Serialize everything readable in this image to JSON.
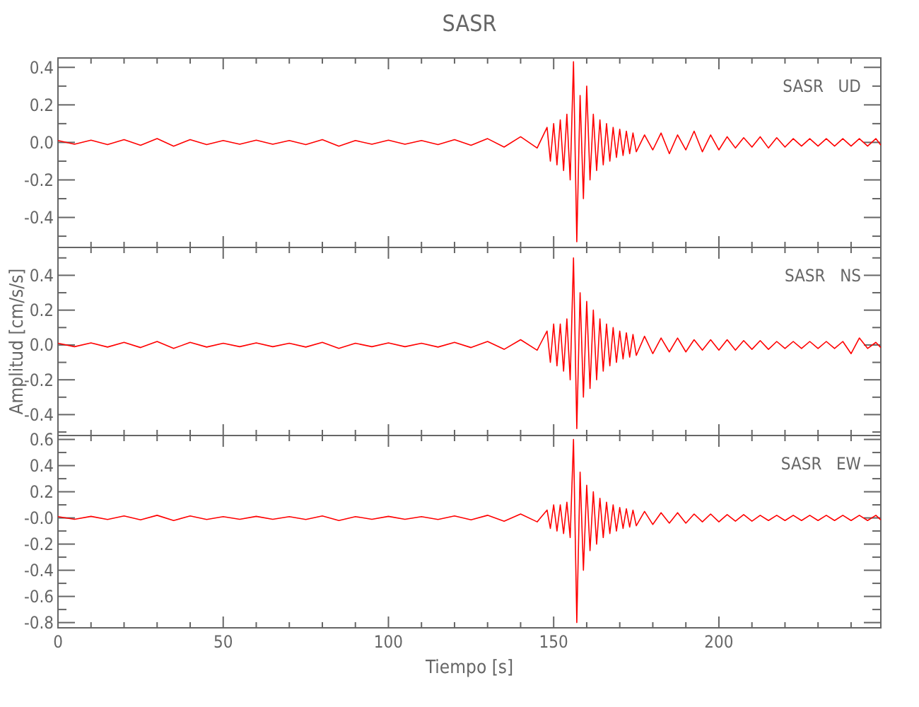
{
  "chart_data": [
    {
      "type": "line",
      "title": "SASR",
      "annotations": [
        "SASR   UD"
      ],
      "tick_labels": "y",
      "xlim": [
        0,
        249
      ],
      "ylim": [
        -0.56,
        0.45
      ],
      "xticks": [
        0,
        {
          "value": 10,
          "label": null
        },
        {
          "value": 20,
          "label": null
        },
        {
          "value": 30,
          "label": null
        },
        {
          "value": 40,
          "label": null
        },
        50,
        {
          "value": 60,
          "label": null
        },
        {
          "value": 70,
          "label": null
        },
        {
          "value": 80,
          "label": null
        },
        {
          "value": 90,
          "label": null
        },
        100,
        {
          "value": 110,
          "label": null
        },
        {
          "value": 120,
          "label": null
        },
        {
          "value": 130,
          "label": null
        },
        {
          "value": 140,
          "label": null
        },
        150,
        {
          "value": 160,
          "label": null
        },
        {
          "value": 170,
          "label": null
        },
        {
          "value": 180,
          "label": null
        },
        {
          "value": 190,
          "label": null
        },
        200,
        {
          "value": 210,
          "label": null
        },
        {
          "value": 220,
          "label": null
        },
        {
          "value": 230,
          "label": null
        },
        {
          "value": 240,
          "label": null
        }
      ],
      "yticks": [
        {
          "value": -0.5,
          "label": null
        },
        -0.4,
        {
          "value": -0.3,
          "label": null
        },
        -0.2,
        {
          "value": -0.1,
          "label": null
        },
        {
          "value": 0,
          "label": "0.0"
        },
        {
          "value": 0.1,
          "label": null
        },
        0.2,
        {
          "value": 0.3,
          "label": null
        },
        0.4
      ],
      "x": [
        0,
        5,
        10,
        15,
        20,
        25,
        30,
        35,
        40,
        45,
        50,
        55,
        60,
        65,
        70,
        75,
        80,
        85,
        90,
        95,
        100,
        105,
        110,
        115,
        120,
        125,
        130,
        135,
        140,
        145,
        148,
        149,
        150,
        151,
        152,
        153,
        154,
        155,
        156,
        157,
        158,
        159,
        160,
        161,
        162,
        163,
        164,
        165,
        166,
        167,
        168,
        169,
        170,
        171,
        172,
        173,
        174,
        175,
        177.5,
        180,
        182.5,
        185,
        187.5,
        190,
        192.5,
        195,
        197.5,
        200,
        202.5,
        205,
        207.5,
        210,
        212.5,
        215,
        217.5,
        220,
        222.5,
        225,
        227.5,
        230,
        232.5,
        235,
        237.5,
        240,
        242.5,
        245,
        247.5,
        249
      ],
      "series": [
        {
          "color": "#ff0000",
          "values": [
            0.01,
            -0.01,
            0.012,
            -0.012,
            0.015,
            -0.015,
            0.02,
            -0.02,
            0.015,
            -0.012,
            0.01,
            -0.01,
            0.012,
            -0.01,
            0.01,
            -0.012,
            0.015,
            -0.02,
            0.01,
            -0.01,
            0.012,
            -0.01,
            0.01,
            -0.012,
            0.015,
            -0.015,
            0.02,
            -0.025,
            0.03,
            -0.03,
            0.08,
            -0.1,
            0.1,
            -0.12,
            0.12,
            -0.15,
            0.15,
            -0.2,
            0.43,
            -0.53,
            0.25,
            -0.3,
            0.3,
            -0.2,
            0.15,
            -0.15,
            0.12,
            -0.12,
            0.1,
            -0.1,
            0.08,
            -0.08,
            0.07,
            -0.07,
            0.06,
            -0.06,
            0.05,
            -0.05,
            0.04,
            -0.04,
            0.05,
            -0.06,
            0.04,
            -0.04,
            0.06,
            -0.05,
            0.04,
            -0.04,
            0.03,
            -0.03,
            0.025,
            -0.025,
            0.03,
            -0.03,
            0.025,
            -0.025,
            0.02,
            -0.02,
            0.02,
            -0.02,
            0.02,
            -0.02,
            0.02,
            -0.02,
            0.02,
            -0.02,
            0.02,
            -0.015
          ]
        }
      ]
    },
    {
      "type": "line",
      "ylabel": "Amplitud [cm/s/s]",
      "annotations": [
        "SASR   NS"
      ],
      "tick_labels": "y",
      "xlim": [
        0,
        249
      ],
      "ylim": [
        -0.52,
        0.56
      ],
      "xticks": [
        0,
        {
          "value": 10,
          "label": null
        },
        {
          "value": 20,
          "label": null
        },
        {
          "value": 30,
          "label": null
        },
        {
          "value": 40,
          "label": null
        },
        50,
        {
          "value": 60,
          "label": null
        },
        {
          "value": 70,
          "label": null
        },
        {
          "value": 80,
          "label": null
        },
        {
          "value": 90,
          "label": null
        },
        100,
        {
          "value": 110,
          "label": null
        },
        {
          "value": 120,
          "label": null
        },
        {
          "value": 130,
          "label": null
        },
        {
          "value": 140,
          "label": null
        },
        150,
        {
          "value": 160,
          "label": null
        },
        {
          "value": 170,
          "label": null
        },
        {
          "value": 180,
          "label": null
        },
        {
          "value": 190,
          "label": null
        },
        200,
        {
          "value": 210,
          "label": null
        },
        {
          "value": 220,
          "label": null
        },
        {
          "value": 230,
          "label": null
        },
        {
          "value": 240,
          "label": null
        }
      ],
      "yticks": [
        {
          "value": -0.5,
          "label": null
        },
        -0.4,
        {
          "value": -0.3,
          "label": null
        },
        -0.2,
        {
          "value": -0.1,
          "label": null
        },
        {
          "value": 0,
          "label": "0.0"
        },
        {
          "value": 0.1,
          "label": null
        },
        0.2,
        {
          "value": 0.3,
          "label": null
        },
        0.4,
        {
          "value": 0.5,
          "label": null
        }
      ],
      "x": [
        0,
        5,
        10,
        15,
        20,
        25,
        30,
        35,
        40,
        45,
        50,
        55,
        60,
        65,
        70,
        75,
        80,
        85,
        90,
        95,
        100,
        105,
        110,
        115,
        120,
        125,
        130,
        135,
        140,
        145,
        148,
        149,
        150,
        151,
        152,
        153,
        154,
        155,
        156,
        157,
        158,
        159,
        160,
        161,
        162,
        163,
        164,
        165,
        166,
        167,
        168,
        169,
        170,
        171,
        172,
        173,
        174,
        175,
        177.5,
        180,
        182.5,
        185,
        187.5,
        190,
        192.5,
        195,
        197.5,
        200,
        202.5,
        205,
        207.5,
        210,
        212.5,
        215,
        217.5,
        220,
        222.5,
        225,
        227.5,
        230,
        232.5,
        235,
        237.5,
        240,
        242.5,
        245,
        247.5,
        249
      ],
      "series": [
        {
          "color": "#ff0000",
          "values": [
            0.01,
            -0.01,
            0.012,
            -0.012,
            0.015,
            -0.015,
            0.02,
            -0.02,
            0.015,
            -0.012,
            0.01,
            -0.01,
            0.012,
            -0.01,
            0.01,
            -0.012,
            0.015,
            -0.02,
            0.01,
            -0.01,
            0.012,
            -0.01,
            0.01,
            -0.012,
            0.015,
            -0.015,
            0.02,
            -0.025,
            0.03,
            -0.03,
            0.08,
            -0.1,
            0.12,
            -0.12,
            0.12,
            -0.15,
            0.15,
            -0.2,
            0.5,
            -0.48,
            0.3,
            -0.3,
            0.25,
            -0.25,
            0.2,
            -0.2,
            0.15,
            -0.15,
            0.12,
            -0.12,
            0.1,
            -0.1,
            0.08,
            -0.08,
            0.07,
            -0.07,
            0.06,
            -0.06,
            0.05,
            -0.05,
            0.04,
            -0.04,
            0.04,
            -0.04,
            0.03,
            -0.03,
            0.03,
            -0.03,
            0.03,
            -0.03,
            0.025,
            -0.025,
            0.025,
            -0.025,
            0.02,
            -0.02,
            0.02,
            -0.02,
            0.02,
            -0.02,
            0.02,
            -0.02,
            0.02,
            -0.05,
            0.04,
            -0.02,
            0.015,
            -0.015
          ]
        }
      ]
    },
    {
      "type": "line",
      "xlabel": "Tiempo [s]",
      "annotations": [
        "SASR   EW"
      ],
      "xlim": [
        0,
        249
      ],
      "ylim": [
        -0.84,
        0.63
      ],
      "xticks": [
        0,
        {
          "value": 10,
          "label": null
        },
        {
          "value": 20,
          "label": null
        },
        {
          "value": 30,
          "label": null
        },
        {
          "value": 40,
          "label": null
        },
        50,
        {
          "value": 60,
          "label": null
        },
        {
          "value": 70,
          "label": null
        },
        {
          "value": 80,
          "label": null
        },
        {
          "value": 90,
          "label": null
        },
        100,
        {
          "value": 110,
          "label": null
        },
        {
          "value": 120,
          "label": null
        },
        {
          "value": 130,
          "label": null
        },
        {
          "value": 140,
          "label": null
        },
        150,
        {
          "value": 160,
          "label": null
        },
        {
          "value": 170,
          "label": null
        },
        {
          "value": 180,
          "label": null
        },
        {
          "value": 190,
          "label": null
        },
        200,
        {
          "value": 210,
          "label": null
        },
        {
          "value": 220,
          "label": null
        },
        {
          "value": 230,
          "label": null
        },
        {
          "value": 240,
          "label": null
        }
      ],
      "yticks": [
        -0.8,
        {
          "value": -0.7,
          "label": null
        },
        -0.6,
        {
          "value": -0.5,
          "label": null
        },
        -0.4,
        {
          "value": -0.3,
          "label": null
        },
        -0.2,
        {
          "value": -0.1,
          "label": null
        },
        {
          "value": 0,
          "label": "-0.0"
        },
        {
          "value": 0.1,
          "label": null
        },
        0.2,
        {
          "value": 0.3,
          "label": null
        },
        0.4,
        {
          "value": 0.5,
          "label": null
        },
        0.6
      ],
      "x": [
        0,
        5,
        10,
        15,
        20,
        25,
        30,
        35,
        40,
        45,
        50,
        55,
        60,
        65,
        70,
        75,
        80,
        85,
        90,
        95,
        100,
        105,
        110,
        115,
        120,
        125,
        130,
        135,
        140,
        145,
        148,
        149,
        150,
        151,
        152,
        153,
        154,
        155,
        156,
        157,
        158,
        159,
        160,
        161,
        162,
        163,
        164,
        165,
        166,
        167,
        168,
        169,
        170,
        171,
        172,
        173,
        174,
        175,
        177.5,
        180,
        182.5,
        185,
        187.5,
        190,
        192.5,
        195,
        197.5,
        200,
        202.5,
        205,
        207.5,
        210,
        212.5,
        215,
        217.5,
        220,
        222.5,
        225,
        227.5,
        230,
        232.5,
        235,
        237.5,
        240,
        242.5,
        245,
        247.5,
        249
      ],
      "series": [
        {
          "color": "#ff0000",
          "values": [
            0.01,
            -0.01,
            0.012,
            -0.012,
            0.015,
            -0.015,
            0.02,
            -0.02,
            0.015,
            -0.012,
            0.01,
            -0.01,
            0.012,
            -0.01,
            0.01,
            -0.012,
            0.015,
            -0.02,
            0.01,
            -0.01,
            0.012,
            -0.01,
            0.01,
            -0.012,
            0.015,
            -0.015,
            0.02,
            -0.025,
            0.03,
            -0.03,
            0.06,
            -0.08,
            0.1,
            -0.1,
            0.1,
            -0.12,
            0.12,
            -0.15,
            0.6,
            -0.8,
            0.35,
            -0.4,
            0.25,
            -0.25,
            0.2,
            -0.2,
            0.15,
            -0.15,
            0.12,
            -0.12,
            0.1,
            -0.1,
            0.08,
            -0.08,
            0.07,
            -0.07,
            0.06,
            -0.06,
            0.05,
            -0.05,
            0.04,
            -0.04,
            0.04,
            -0.04,
            0.03,
            -0.03,
            0.03,
            -0.03,
            0.025,
            -0.025,
            0.025,
            -0.025,
            0.02,
            -0.02,
            0.02,
            -0.02,
            0.02,
            -0.02,
            0.02,
            -0.02,
            0.02,
            -0.02,
            0.02,
            -0.02,
            0.02,
            -0.02,
            0.02,
            -0.015
          ]
        }
      ]
    }
  ]
}
